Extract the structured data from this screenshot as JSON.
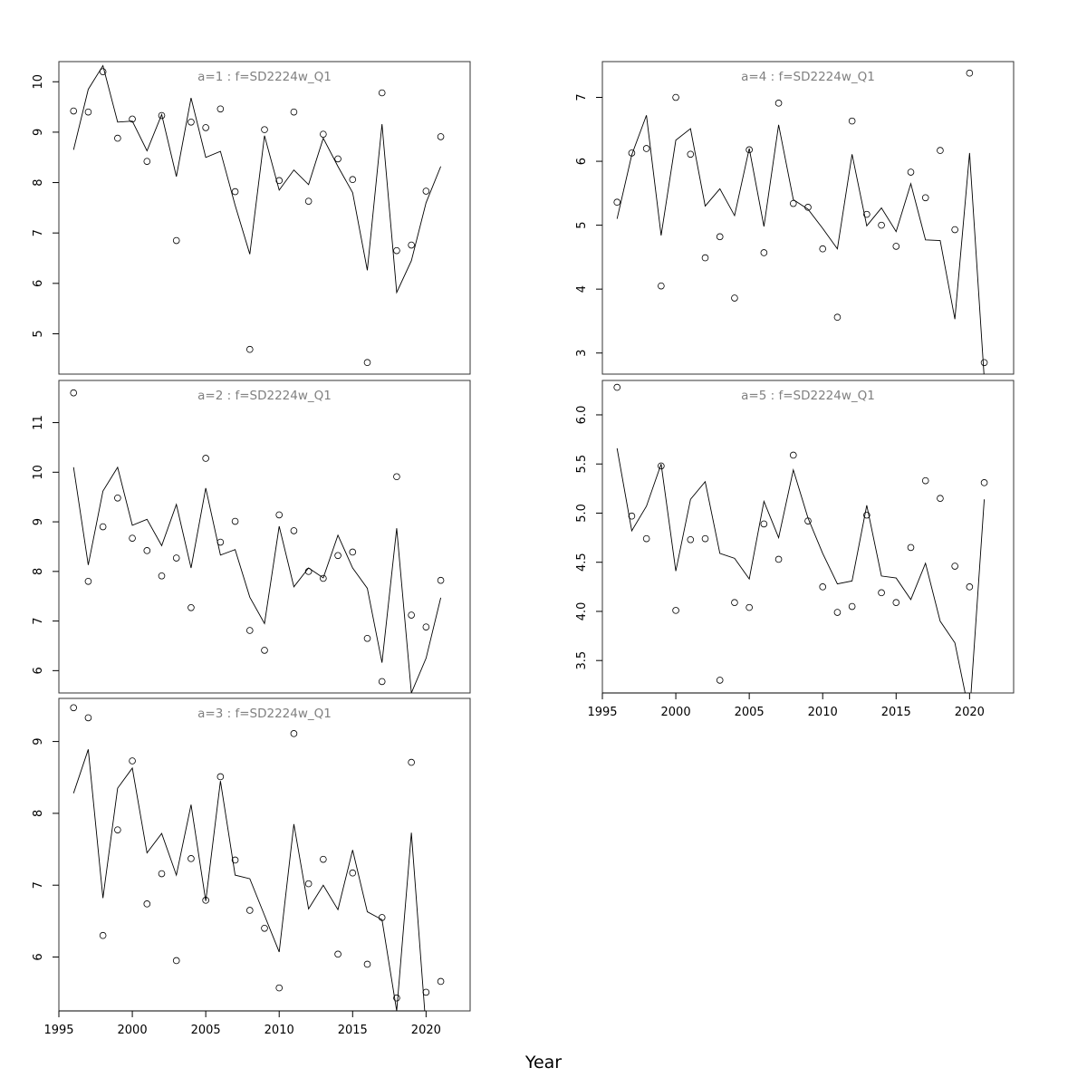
{
  "figure": {
    "xlabel": "Year"
  },
  "chart_data": [
    {
      "type": "line",
      "panel_title": "a=1  :  f=SD2224w_Q1",
      "xlim": [
        1995,
        2023
      ],
      "ylim": [
        4.2,
        10.4
      ],
      "yticks": [
        5,
        6,
        7,
        8,
        9,
        10
      ],
      "xticks": [],
      "x": [
        1996,
        1997,
        1998,
        1999,
        2000,
        2001,
        2002,
        2003,
        2004,
        2005,
        2006,
        2007,
        2008,
        2009,
        2010,
        2011,
        2012,
        2013,
        2014,
        2015,
        2016,
        2017,
        2018,
        2019,
        2020,
        2021
      ],
      "series": [
        {
          "style": "points",
          "values": [
            9.42,
            9.4,
            10.2,
            8.88,
            9.26,
            8.42,
            9.33,
            6.85,
            9.2,
            9.09,
            9.46,
            7.82,
            4.69,
            9.05,
            8.04,
            9.4,
            7.63,
            8.96,
            8.47,
            8.06,
            4.43,
            9.78,
            6.65,
            6.76,
            7.83,
            8.91
          ]
        },
        {
          "style": "line",
          "values": [
            8.65,
            9.85,
            10.32,
            9.2,
            9.22,
            8.63,
            9.35,
            8.12,
            9.68,
            8.5,
            8.62,
            7.55,
            6.58,
            8.93,
            7.85,
            8.25,
            7.96,
            8.88,
            8.32,
            7.8,
            6.26,
            9.16,
            5.82,
            6.45,
            7.6,
            8.32
          ]
        }
      ]
    },
    {
      "type": "line",
      "panel_title": "a=2  :  f=SD2224w_Q1",
      "xlim": [
        1995,
        2023
      ],
      "ylim": [
        5.55,
        11.85
      ],
      "yticks": [
        6,
        7,
        8,
        9,
        10,
        11
      ],
      "xticks": [],
      "x": [
        1996,
        1997,
        1998,
        1999,
        2000,
        2001,
        2002,
        2003,
        2004,
        2005,
        2006,
        2007,
        2008,
        2009,
        2010,
        2011,
        2012,
        2013,
        2014,
        2015,
        2016,
        2017,
        2018,
        2019,
        2020,
        2021
      ],
      "series": [
        {
          "style": "points",
          "values": [
            11.6,
            7.8,
            8.9,
            9.48,
            8.67,
            8.42,
            7.91,
            8.27,
            7.27,
            10.28,
            8.59,
            9.01,
            6.81,
            6.41,
            9.14,
            8.82,
            8.0,
            7.86,
            8.32,
            8.39,
            6.65,
            5.78,
            9.91,
            7.12,
            6.88,
            7.82
          ]
        },
        {
          "style": "line",
          "values": [
            10.1,
            8.13,
            9.62,
            10.1,
            8.93,
            9.05,
            8.52,
            9.35,
            8.07,
            9.68,
            8.33,
            8.44,
            7.48,
            6.95,
            8.91,
            7.69,
            8.07,
            7.87,
            8.73,
            8.07,
            7.66,
            6.16,
            8.87,
            5.55,
            6.25,
            7.47
          ]
        }
      ]
    },
    {
      "type": "line",
      "panel_title": "a=3  :  f=SD2224w_Q1",
      "xlim": [
        1995,
        2023
      ],
      "ylim": [
        5.25,
        9.6
      ],
      "yticks": [
        6,
        7,
        8,
        9
      ],
      "xticks": [
        1995,
        2000,
        2005,
        2010,
        2015,
        2020
      ],
      "x": [
        1996,
        1997,
        1998,
        1999,
        2000,
        2001,
        2002,
        2003,
        2004,
        2005,
        2006,
        2007,
        2008,
        2009,
        2010,
        2011,
        2012,
        2013,
        2014,
        2015,
        2016,
        2017,
        2018,
        2019,
        2020,
        2021
      ],
      "series": [
        {
          "style": "points",
          "values": [
            9.47,
            9.33,
            6.3,
            7.77,
            8.73,
            6.74,
            7.16,
            5.95,
            7.37,
            6.79,
            8.51,
            7.35,
            6.65,
            6.4,
            5.57,
            9.11,
            7.02,
            7.36,
            6.04,
            7.17,
            5.9,
            6.55,
            5.43,
            8.71,
            5.51,
            5.66
          ]
        },
        {
          "style": "line",
          "values": [
            8.28,
            8.89,
            6.82,
            8.35,
            8.63,
            7.45,
            7.72,
            7.14,
            8.12,
            6.78,
            8.45,
            7.14,
            7.09,
            6.58,
            6.07,
            7.85,
            6.67,
            7.0,
            6.66,
            7.49,
            6.63,
            6.52,
            5.25,
            7.73,
            5.0,
            null
          ]
        }
      ]
    },
    {
      "type": "line",
      "panel_title": "a=4  :  f=SD2224w_Q1",
      "xlim": [
        1995,
        2023
      ],
      "ylim": [
        2.67,
        7.56
      ],
      "yticks": [
        3,
        4,
        5,
        6,
        7
      ],
      "xticks": [],
      "x": [
        1996,
        1997,
        1998,
        1999,
        2000,
        2001,
        2002,
        2003,
        2004,
        2005,
        2006,
        2007,
        2008,
        2009,
        2010,
        2011,
        2012,
        2013,
        2014,
        2015,
        2016,
        2017,
        2018,
        2019,
        2020,
        2021
      ],
      "series": [
        {
          "style": "points",
          "values": [
            5.36,
            6.13,
            6.2,
            4.05,
            7.0,
            6.11,
            4.49,
            4.82,
            3.86,
            6.18,
            4.57,
            6.91,
            5.34,
            5.28,
            4.63,
            3.56,
            6.63,
            5.17,
            5.0,
            4.67,
            5.83,
            5.43,
            6.17,
            4.93,
            7.38,
            2.85
          ]
        },
        {
          "style": "line",
          "values": [
            5.1,
            6.1,
            6.72,
            4.84,
            6.33,
            6.51,
            5.3,
            5.57,
            5.15,
            6.2,
            4.98,
            6.57,
            5.4,
            5.25,
            4.95,
            4.63,
            6.11,
            4.99,
            5.27,
            4.9,
            5.65,
            4.77,
            4.76,
            3.53,
            6.13,
            2.6
          ]
        }
      ]
    },
    {
      "type": "line",
      "panel_title": "a=5  :  f=SD2224w_Q1",
      "xlim": [
        1995,
        2023
      ],
      "ylim": [
        3.17,
        6.35
      ],
      "yticks": [
        3.5,
        4.0,
        4.5,
        5.0,
        5.5,
        6.0
      ],
      "xticks": [
        1995,
        2000,
        2005,
        2010,
        2015,
        2020
      ],
      "x": [
        1996,
        1997,
        1998,
        1999,
        2000,
        2001,
        2002,
        2003,
        2004,
        2005,
        2006,
        2007,
        2008,
        2009,
        2010,
        2011,
        2012,
        2013,
        2014,
        2015,
        2016,
        2017,
        2018,
        2019,
        2020,
        2021
      ],
      "series": [
        {
          "style": "points",
          "values": [
            6.28,
            4.97,
            4.74,
            5.48,
            4.01,
            4.73,
            4.74,
            3.3,
            4.09,
            4.04,
            4.89,
            4.53,
            5.59,
            4.92,
            4.25,
            3.99,
            4.05,
            4.98,
            4.19,
            4.09,
            4.65,
            5.33,
            5.15,
            4.46,
            4.25,
            5.31
          ]
        },
        {
          "style": "line",
          "values": [
            5.66,
            4.82,
            5.07,
            5.5,
            4.41,
            5.14,
            5.32,
            4.59,
            4.54,
            4.33,
            5.12,
            4.75,
            5.44,
            4.95,
            4.59,
            4.28,
            4.31,
            5.08,
            4.36,
            4.34,
            4.12,
            4.49,
            3.9,
            3.68,
            2.95,
            5.14
          ]
        }
      ]
    }
  ]
}
